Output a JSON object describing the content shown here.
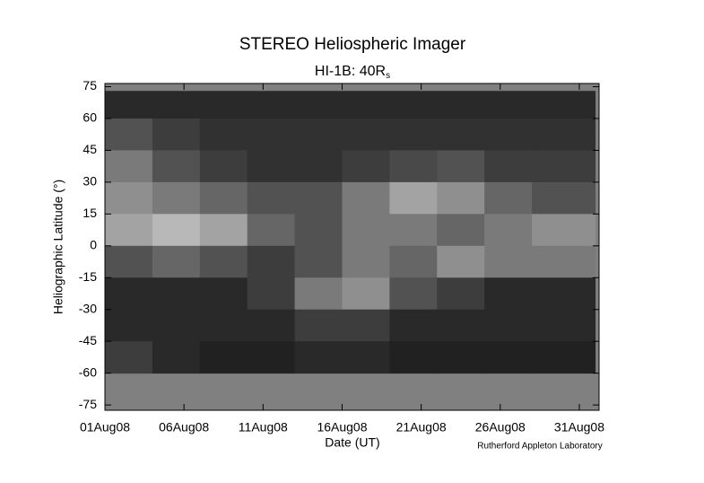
{
  "chart_data": {
    "type": "heatmap",
    "title": "STEREO Heliospheric Imager",
    "subtitle": {
      "text": "HI-1B: 40R",
      "subscript": "s"
    },
    "y_label": "Heliographic Latitude (°)",
    "x_label": "Date (UT)",
    "credit": "Rutherford Appleton Laboratory",
    "xlim": [
      1,
      32.25
    ],
    "xticks": [
      {
        "value": 1,
        "label": "01Aug08"
      },
      {
        "value": 6,
        "label": "06Aug08"
      },
      {
        "value": 11,
        "label": "11Aug08"
      },
      {
        "value": 16,
        "label": "16Aug08"
      },
      {
        "value": 21,
        "label": "21Aug08"
      },
      {
        "value": 26,
        "label": "26Aug08"
      },
      {
        "value": 31,
        "label": "31Aug08"
      }
    ],
    "ylim": [
      -77.5,
      76.5
    ],
    "yticks": [
      -75,
      -60,
      -45,
      -30,
      -15,
      0,
      15,
      30,
      45,
      60,
      75
    ],
    "x_edges": [
      1,
      4,
      7,
      10,
      13,
      16,
      19,
      22,
      25,
      28,
      32
    ],
    "y_edges": [
      73,
      60,
      45,
      30,
      15,
      0,
      -15,
      -30,
      -45,
      -60
    ],
    "z": [
      [
        10,
        10,
        10,
        10,
        10,
        10,
        10,
        10,
        10,
        10
      ],
      [
        20,
        15,
        12,
        12,
        12,
        12,
        12,
        12,
        12,
        12
      ],
      [
        30,
        20,
        15,
        12,
        12,
        15,
        18,
        20,
        15,
        15
      ],
      [
        35,
        30,
        25,
        20,
        20,
        30,
        40,
        35,
        25,
        20
      ],
      [
        40,
        45,
        40,
        25,
        20,
        30,
        30,
        25,
        30,
        35
      ],
      [
        20,
        25,
        20,
        15,
        20,
        30,
        25,
        35,
        30,
        30
      ],
      [
        10,
        10,
        10,
        15,
        30,
        35,
        20,
        15,
        10,
        10
      ],
      [
        10,
        10,
        10,
        10,
        15,
        15,
        10,
        10,
        10,
        10
      ],
      [
        15,
        10,
        8,
        8,
        10,
        10,
        8,
        8,
        8,
        8
      ]
    ]
  }
}
